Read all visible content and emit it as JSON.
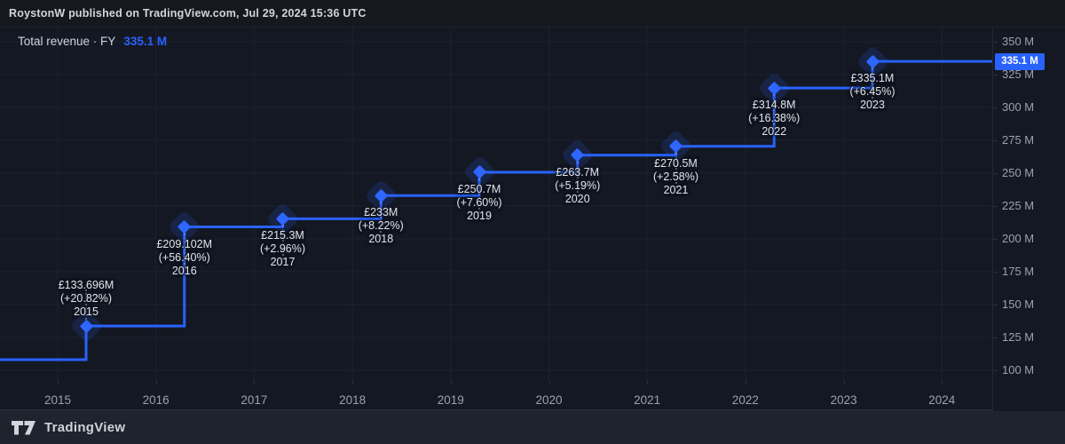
{
  "topbar": {
    "attribution": "RoystonW published on TradingView.com, Jul 29, 2024 15:36 UTC"
  },
  "legend": {
    "label": "Total revenue · FY",
    "value": "335.1 M"
  },
  "footer": {
    "brand": "TradingView"
  },
  "colors": {
    "accent_blue": "#2962ff",
    "chart_background": "#141823",
    "grid_line": "#1d2230",
    "axis_text": "#9ba1ac",
    "point_label_text": "#e0e3e9",
    "price_tag_bg": "#2962ff"
  },
  "price_axis": {
    "last_price_label": "335.1 M"
  },
  "chart_data": {
    "type": "line",
    "style": "step-line-with-diamond-markers",
    "title": "Total revenue · FY",
    "series_name": "Total revenue",
    "unit": "GBP millions",
    "x": [
      "2015",
      "2016",
      "2017",
      "2018",
      "2019",
      "2020",
      "2021",
      "2022",
      "2023"
    ],
    "values": [
      133.696,
      209.102,
      215.3,
      233.0,
      250.7,
      263.7,
      270.5,
      314.8,
      335.1
    ],
    "point_labels": [
      {
        "value": "£133.696M",
        "change": "(+20.82%)",
        "year": "2015",
        "label_position": "above"
      },
      {
        "value": "£209.102M",
        "change": "(+56.40%)",
        "year": "2016",
        "label_position": "below"
      },
      {
        "value": "£215.3M",
        "change": "(+2.96%)",
        "year": "2017",
        "label_position": "below"
      },
      {
        "value": "£233M",
        "change": "(+8.22%)",
        "year": "2018",
        "label_position": "below"
      },
      {
        "value": "£250.7M",
        "change": "(+7.60%)",
        "year": "2019",
        "label_position": "below"
      },
      {
        "value": "£263.7M",
        "change": "(+5.19%)",
        "year": "2020",
        "label_position": "below"
      },
      {
        "value": "£270.5M",
        "change": "(+2.58%)",
        "year": "2021",
        "label_position": "below"
      },
      {
        "value": "£314.8M",
        "change": "(+16.38%)",
        "year": "2022",
        "label_position": "below"
      },
      {
        "value": "£335.1M",
        "change": "(+6.45%)",
        "year": "2023",
        "label_position": "below"
      }
    ],
    "y_ticks": [
      {
        "value": 350,
        "label": "350 M"
      },
      {
        "value": 325,
        "label": "325 M"
      },
      {
        "value": 300,
        "label": "300 M"
      },
      {
        "value": 275,
        "label": "275 M"
      },
      {
        "value": 250,
        "label": "250 M"
      },
      {
        "value": 225,
        "label": "225 M"
      },
      {
        "value": 200,
        "label": "200 M"
      },
      {
        "value": 175,
        "label": "175 M"
      },
      {
        "value": 150,
        "label": "150 M"
      },
      {
        "value": 125,
        "label": "125 M"
      },
      {
        "value": 100,
        "label": "100 M"
      }
    ],
    "x_ticks": [
      "2015",
      "2016",
      "2017",
      "2018",
      "2019",
      "2020",
      "2021",
      "2022",
      "2023",
      "2024"
    ],
    "ylim": [
      95,
      358
    ],
    "grid": true,
    "legend_position": "top-left",
    "line_color": "#2962ff",
    "last_value_tag": "335.1 M"
  }
}
